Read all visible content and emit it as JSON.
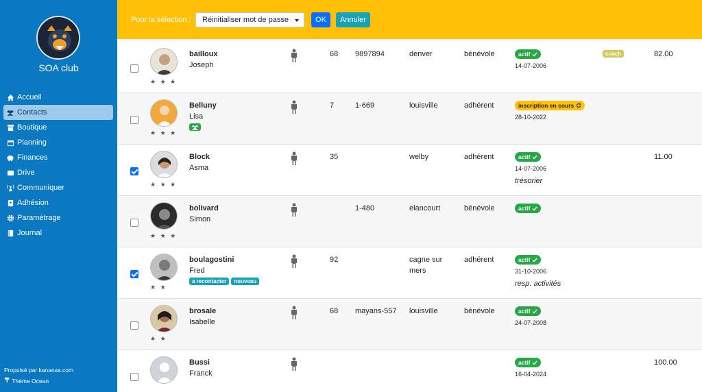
{
  "app": {
    "club_name": "SOA club",
    "footer_powered": "Propulsé par kananas.com",
    "footer_theme": "Thème Ocean"
  },
  "sidebar": {
    "items": [
      {
        "label": "Accueil",
        "icon": "home-icon",
        "active": false
      },
      {
        "label": "Contacts",
        "icon": "users-icon",
        "active": true
      },
      {
        "label": "Boutique",
        "icon": "shop-icon",
        "active": false
      },
      {
        "label": "Planning",
        "icon": "calendar-icon",
        "active": false
      },
      {
        "label": "Finances",
        "icon": "piggy-bank-icon",
        "active": false
      },
      {
        "label": "Drive",
        "icon": "drive-icon",
        "active": false
      },
      {
        "label": "Communiquer",
        "icon": "broadcast-icon",
        "active": false
      },
      {
        "label": "Adhésion",
        "icon": "id-card-icon",
        "active": false
      },
      {
        "label": "Paramétrage",
        "icon": "gear-icon",
        "active": false
      },
      {
        "label": "Journal",
        "icon": "book-icon",
        "active": false
      }
    ]
  },
  "toolbar": {
    "selection_label": "Pour la sélection :",
    "action_value": "Réinitialiser mot de passe",
    "ok_label": "OK",
    "cancel_label": "Annuler"
  },
  "colors": {
    "sidebar": "#0b78c2",
    "topbar": "#ffc107",
    "status_active": "#28a745",
    "status_pending": "#ffc107",
    "tag": "#17a2b8"
  },
  "contacts": [
    {
      "last_name": "bailloux",
      "first_name": "Joseph",
      "stars": "★ ★ ★",
      "checked": false,
      "num": "68",
      "num2": "9897894",
      "city": "denver",
      "role": "bénévole",
      "status": "actif",
      "date": "14-07-2006",
      "note": "",
      "coach": "coach",
      "amount": "82.00",
      "tags": []
    },
    {
      "last_name": "Belluny",
      "first_name": "Lisa",
      "stars": "★ ★ ★",
      "checked": false,
      "num": "7",
      "num2": "1-669",
      "city": "louisville",
      "role": "adhérent",
      "status": "inscription en cours",
      "date": "28-10-2022",
      "note": "",
      "coach": "",
      "amount": "",
      "tags": [
        "group-icon"
      ]
    },
    {
      "last_name": "Block",
      "first_name": "Asma",
      "stars": "★ ★ ★",
      "checked": true,
      "num": "35",
      "num2": "",
      "city": "welby",
      "role": "adhérent",
      "status": "actif",
      "date": "14-07-2006",
      "note": "trésorier",
      "coach": "",
      "amount": "11.00",
      "tags": []
    },
    {
      "last_name": "bolivard",
      "first_name": "Simon",
      "stars": "★ ★ ★",
      "checked": false,
      "num": "",
      "num2": "1-480",
      "city": "elancourt",
      "role": "bénévole",
      "status": "actif",
      "date": "",
      "note": "",
      "coach": "",
      "amount": "",
      "tags": []
    },
    {
      "last_name": "boulagostini",
      "first_name": "Fred",
      "stars": "★ ★",
      "checked": true,
      "num": "92",
      "num2": "",
      "city": "cagne sur mers",
      "role": "adhérent",
      "status": "actif",
      "date": "31-10-2006",
      "note": "resp. activités",
      "coach": "",
      "amount": "",
      "tags": [
        "a recontacter",
        "nouveau"
      ]
    },
    {
      "last_name": "brosale",
      "first_name": "Isabelle",
      "stars": "★ ★",
      "checked": false,
      "num": "68",
      "num2": "mayans-557",
      "city": "louisville",
      "role": "bénévole",
      "status": "actif",
      "date": "24-07-2008",
      "note": "",
      "coach": "",
      "amount": "",
      "tags": []
    },
    {
      "last_name": "Bussi",
      "first_name": "Franck",
      "stars": "",
      "checked": false,
      "num": "",
      "num2": "",
      "city": "",
      "role": "",
      "status": "actif",
      "date": "16-04-2024",
      "note": "",
      "coach": "",
      "amount": "100.00",
      "tags": []
    }
  ]
}
